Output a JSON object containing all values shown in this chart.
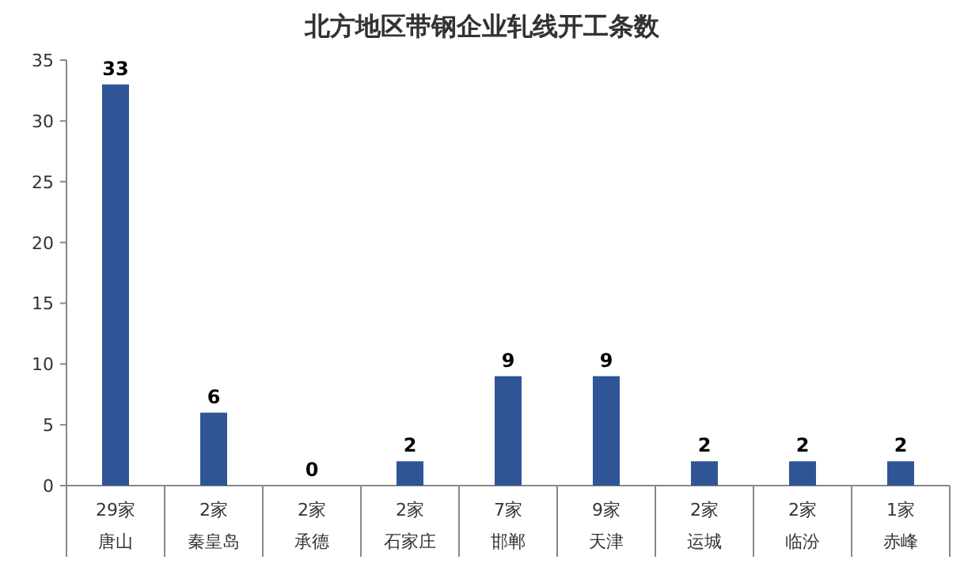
{
  "chart_data": {
    "type": "bar",
    "title": "北方地区带钢企业轧线开工条数",
    "categories": [
      "29家唐山",
      "2家秦皇岛",
      "2家承德",
      "2家石家庄",
      "7家邯郸",
      "9家天津",
      "2家运城",
      "2家临汾",
      "1家赤峰"
    ],
    "values": [
      33,
      6,
      0,
      2,
      9,
      9,
      2,
      2,
      2
    ],
    "color": "#2f5597",
    "ylim": [
      0,
      35
    ],
    "yticks": [
      0,
      5,
      10,
      15,
      20,
      25,
      30,
      35
    ],
    "data_labels": true
  }
}
